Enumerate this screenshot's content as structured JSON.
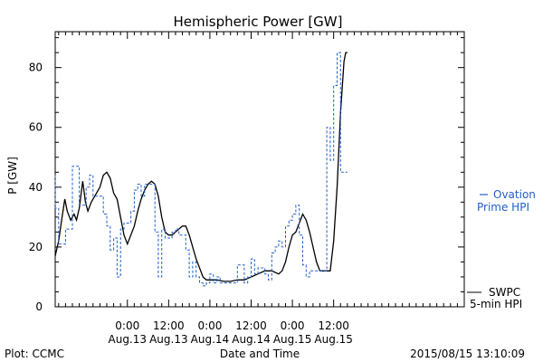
{
  "chart_data": {
    "type": "line",
    "title": "Hemispheric Power [GW]",
    "xlabel": "Date and Time",
    "ylabel": "P [GW]",
    "xlim": [
      -21,
      98
    ],
    "ylim": [
      0,
      92
    ],
    "grid": false,
    "x_unit": "hours",
    "x_ticks": [
      {
        "x": 0,
        "time": "0:00",
        "date": "Aug.13"
      },
      {
        "x": 12,
        "time": "12:00",
        "date": "Aug.13"
      },
      {
        "x": 24,
        "time": "0:00",
        "date": "Aug.14"
      },
      {
        "x": 36,
        "time": "12:00",
        "date": "Aug.14"
      },
      {
        "x": 48,
        "time": "0:00",
        "date": "Aug.15"
      },
      {
        "x": 60,
        "time": "12:00",
        "date": "Aug.15"
      }
    ],
    "y_ticks": [
      0,
      20,
      40,
      60,
      80
    ],
    "series": [
      {
        "name": "SWPC",
        "name_line2": "5-min HPI",
        "color": "#000000",
        "style": "solid",
        "points": [
          [
            -21,
            17
          ],
          [
            -20,
            22
          ],
          [
            -19,
            30
          ],
          [
            -18.2,
            36
          ],
          [
            -17.5,
            32
          ],
          [
            -16.5,
            29
          ],
          [
            -15.5,
            31
          ],
          [
            -14.8,
            29
          ],
          [
            -14,
            33
          ],
          [
            -13,
            42
          ],
          [
            -12.2,
            35
          ],
          [
            -11.5,
            32
          ],
          [
            -10.5,
            35
          ],
          [
            -9,
            38
          ],
          [
            -8,
            40
          ],
          [
            -7,
            44
          ],
          [
            -6,
            45
          ],
          [
            -5,
            43
          ],
          [
            -4,
            38
          ],
          [
            -3,
            36
          ],
          [
            -2,
            30
          ],
          [
            -1,
            24
          ],
          [
            0,
            21
          ],
          [
            1,
            24
          ],
          [
            2,
            27
          ],
          [
            3,
            32
          ],
          [
            4,
            36
          ],
          [
            5,
            39
          ],
          [
            6,
            41
          ],
          [
            7,
            42
          ],
          [
            8,
            41
          ],
          [
            9,
            37
          ],
          [
            10,
            30
          ],
          [
            11,
            25
          ],
          [
            12,
            24
          ],
          [
            13,
            24
          ],
          [
            14,
            25
          ],
          [
            15,
            26
          ],
          [
            16,
            27
          ],
          [
            17,
            27
          ],
          [
            18,
            24
          ],
          [
            19,
            20
          ],
          [
            20,
            16
          ],
          [
            21,
            13
          ],
          [
            22,
            10
          ],
          [
            23,
            9
          ],
          [
            24,
            9
          ],
          [
            26,
            9
          ],
          [
            28,
            8.5
          ],
          [
            30,
            8.5
          ],
          [
            32,
            9
          ],
          [
            34,
            9
          ],
          [
            36,
            10
          ],
          [
            38,
            11
          ],
          [
            40,
            12
          ],
          [
            42,
            12
          ],
          [
            44,
            11
          ],
          [
            45,
            12
          ],
          [
            46,
            15
          ],
          [
            47,
            20
          ],
          [
            48,
            24
          ],
          [
            49,
            25
          ],
          [
            50,
            28
          ],
          [
            51,
            31
          ],
          [
            52,
            29
          ],
          [
            53,
            25
          ],
          [
            54,
            20
          ],
          [
            55,
            15
          ],
          [
            56,
            12
          ],
          [
            57,
            12
          ],
          [
            58,
            12
          ],
          [
            59,
            12
          ],
          [
            60,
            22
          ],
          [
            61,
            40
          ],
          [
            62,
            65
          ],
          [
            63,
            82
          ],
          [
            63.5,
            85
          ],
          [
            64,
            85
          ]
        ]
      },
      {
        "name": "Ovation",
        "name_line2": "Prime HPI",
        "color": "#2060c8",
        "style": "dashed",
        "points": [
          [
            -21,
            44
          ],
          [
            -20,
            33
          ],
          [
            -19,
            21
          ],
          [
            -18,
            21
          ],
          [
            -17,
            26
          ],
          [
            -16,
            26
          ],
          [
            -15,
            47
          ],
          [
            -14,
            47
          ],
          [
            -13,
            34
          ],
          [
            -12,
            34
          ],
          [
            -11,
            40
          ],
          [
            -10,
            44
          ],
          [
            -9,
            37
          ],
          [
            -8,
            37
          ],
          [
            -7,
            37
          ],
          [
            -6,
            31
          ],
          [
            -5,
            27
          ],
          [
            -4,
            19
          ],
          [
            -3,
            23
          ],
          [
            -2,
            10
          ],
          [
            -1,
            26
          ],
          [
            0,
            28
          ],
          [
            1,
            28
          ],
          [
            2,
            32
          ],
          [
            3,
            39
          ],
          [
            4,
            41
          ],
          [
            5,
            37
          ],
          [
            6,
            41
          ],
          [
            7,
            41
          ],
          [
            8,
            41
          ],
          [
            9,
            25
          ],
          [
            10,
            10
          ],
          [
            11,
            26
          ],
          [
            12,
            23
          ],
          [
            13,
            23
          ],
          [
            14,
            25
          ],
          [
            15,
            26
          ],
          [
            16,
            24
          ],
          [
            17,
            24
          ],
          [
            18,
            19
          ],
          [
            19,
            10
          ],
          [
            20,
            15
          ],
          [
            21,
            10
          ],
          [
            22,
            8
          ],
          [
            23,
            7
          ],
          [
            24,
            8
          ],
          [
            25,
            11
          ],
          [
            26,
            8
          ],
          [
            27,
            10
          ],
          [
            28,
            8
          ],
          [
            30,
            8
          ],
          [
            32,
            8
          ],
          [
            34,
            14
          ],
          [
            35,
            8
          ],
          [
            36,
            10
          ],
          [
            37,
            16
          ],
          [
            38,
            11
          ],
          [
            39,
            13
          ],
          [
            40,
            13
          ],
          [
            41,
            11
          ],
          [
            42,
            9
          ],
          [
            43,
            18
          ],
          [
            44,
            20
          ],
          [
            45,
            22
          ],
          [
            46,
            20
          ],
          [
            47,
            27
          ],
          [
            48,
            29
          ],
          [
            49,
            31
          ],
          [
            50,
            34
          ],
          [
            51,
            24
          ],
          [
            52,
            14
          ],
          [
            53,
            10
          ],
          [
            54,
            12
          ],
          [
            55,
            12
          ],
          [
            56,
            12
          ],
          [
            57,
            12
          ],
          [
            58,
            12
          ],
          [
            59,
            60
          ],
          [
            60,
            49
          ],
          [
            61,
            74
          ],
          [
            62,
            85
          ],
          [
            63,
            45
          ],
          [
            64,
            45
          ]
        ]
      }
    ]
  },
  "footer": {
    "left": "Plot: CCMC",
    "right": "2015/08/15 13:10:09"
  }
}
